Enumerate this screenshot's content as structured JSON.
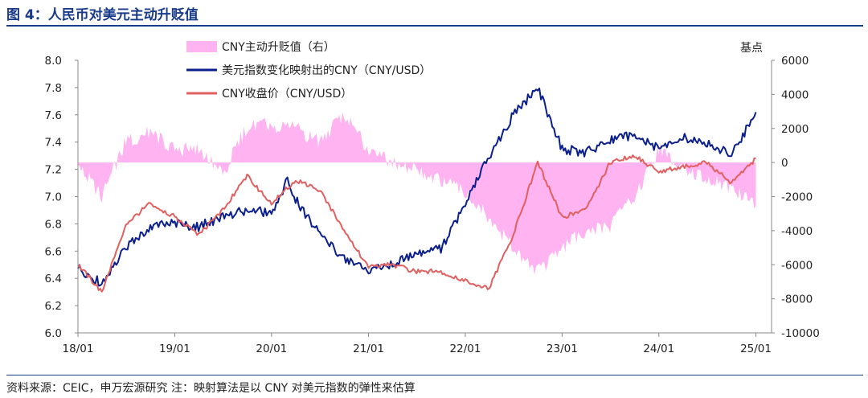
{
  "figure": {
    "title": "图 4：人民币对美元主动升贬值",
    "source": "资料来源：CEIC，申万宏源研究  注：映射算法是以 CNY 对美元指数的弹性来估算"
  },
  "chart_data": {
    "type": "line",
    "title": "",
    "x_ticks": [
      "18/01",
      "19/01",
      "20/01",
      "21/01",
      "22/01",
      "23/01",
      "24/01",
      "25/01"
    ],
    "y_left": {
      "label": "",
      "ylim": [
        6.0,
        8.0
      ],
      "ticks": [
        "6.0",
        "6.2",
        "6.4",
        "6.6",
        "6.8",
        "7.0",
        "7.2",
        "7.4",
        "7.6",
        "7.8",
        "8.0"
      ]
    },
    "y_right": {
      "label": "基点",
      "ylim": [
        -10000,
        6000
      ],
      "ticks": [
        "-10000",
        "-8000",
        "-6000",
        "-4000",
        "-2000",
        "0",
        "2000",
        "4000",
        "6000"
      ]
    },
    "legend_position": "top-center",
    "grid": false,
    "series": [
      {
        "name": "CNY主动升贬值（右）",
        "type": "area",
        "axis": "right",
        "color": "#ffb3f0",
        "x": [
          "2018-01",
          "2018-04",
          "2018-07",
          "2018-10",
          "2019-01",
          "2019-04",
          "2019-07",
          "2019-10",
          "2020-01",
          "2020-04",
          "2020-07",
          "2020-10",
          "2021-01",
          "2021-04",
          "2021-07",
          "2021-10",
          "2022-01",
          "2022-04",
          "2022-07",
          "2022-10",
          "2023-01",
          "2023-04",
          "2023-07",
          "2023-10",
          "2024-01",
          "2024-04",
          "2024-07",
          "2024-10",
          "2025-01"
        ],
        "values": [
          -200,
          -2000,
          1200,
          1800,
          700,
          800,
          -700,
          2100,
          2200,
          2000,
          1200,
          2900,
          800,
          -100,
          -500,
          -1000,
          -1800,
          -3300,
          -5000,
          -6400,
          -5000,
          -4000,
          -3800,
          -2000,
          800,
          -300,
          -1000,
          -1500,
          -2500
        ]
      },
      {
        "name": "美元指数变化映射出的CNY（CNY/USD）",
        "type": "line",
        "axis": "left",
        "color": "#0b1f8c",
        "x": [
          "2018-01",
          "2018-04",
          "2018-07",
          "2018-10",
          "2019-01",
          "2019-04",
          "2019-07",
          "2019-10",
          "2020-01",
          "2020-03",
          "2020-04",
          "2020-07",
          "2020-10",
          "2021-01",
          "2021-04",
          "2021-07",
          "2021-10",
          "2022-01",
          "2022-04",
          "2022-07",
          "2022-10",
          "2023-01",
          "2023-04",
          "2023-07",
          "2023-10",
          "2024-01",
          "2024-04",
          "2024-07",
          "2024-10",
          "2025-01"
        ],
        "values": [
          6.48,
          6.36,
          6.62,
          6.78,
          6.8,
          6.78,
          6.85,
          6.9,
          6.88,
          7.12,
          6.98,
          6.72,
          6.55,
          6.45,
          6.5,
          6.58,
          6.62,
          6.95,
          7.3,
          7.6,
          7.8,
          7.35,
          7.32,
          7.42,
          7.45,
          7.35,
          7.43,
          7.4,
          7.3,
          7.62
        ]
      },
      {
        "name": "CNY收盘价（CNY/USD）",
        "type": "line",
        "axis": "left",
        "color": "#e06060",
        "x": [
          "2018-01",
          "2018-04",
          "2018-07",
          "2018-10",
          "2019-01",
          "2019-04",
          "2019-07",
          "2019-10",
          "2020-01",
          "2020-04",
          "2020-07",
          "2020-10",
          "2021-01",
          "2021-04",
          "2021-07",
          "2021-10",
          "2022-01",
          "2022-04",
          "2022-07",
          "2022-10",
          "2023-01",
          "2023-04",
          "2023-07",
          "2023-10",
          "2024-01",
          "2024-04",
          "2024-07",
          "2024-10",
          "2025-01"
        ],
        "values": [
          6.5,
          6.3,
          6.8,
          6.95,
          6.85,
          6.72,
          6.9,
          7.15,
          6.95,
          7.12,
          7.05,
          6.75,
          6.48,
          6.5,
          6.45,
          6.45,
          6.38,
          6.33,
          6.72,
          7.25,
          6.85,
          6.9,
          7.25,
          7.3,
          7.18,
          7.22,
          7.25,
          7.1,
          7.28
        ]
      }
    ]
  }
}
